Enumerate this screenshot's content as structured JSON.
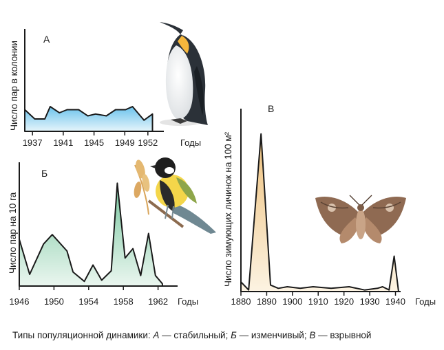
{
  "chart_data": [
    {
      "type": "area",
      "letter": "А",
      "ylabel": "Число пар в колонии",
      "xlabel": "Годы",
      "x_ticks": [
        "1937",
        "1941",
        "1945",
        "1949",
        "1952"
      ],
      "xlim": [
        1936,
        1953
      ],
      "ylim": [
        0,
        10
      ],
      "x": [
        1936,
        1937.3,
        1938.6,
        1939.3,
        1940.5,
        1941.5,
        1943,
        1944.2,
        1945.2,
        1946.6,
        1947.8,
        1949.1,
        1950,
        1951.5,
        1952.6
      ],
      "y": [
        3.5,
        2,
        2,
        4,
        3,
        3.5,
        3.5,
        2.5,
        2.8,
        2.5,
        3.5,
        3.5,
        4,
        1.8,
        2.8
      ],
      "fill": "#b7e0f2",
      "image": "emperor-penguin"
    },
    {
      "type": "area",
      "letter": "Б",
      "ylabel": "Число пар на 10 га",
      "xlabel": "Годы",
      "x_ticks": [
        "1946",
        "1950",
        "1954",
        "1958",
        "1962"
      ],
      "xlim": [
        1946,
        1963.3
      ],
      "ylim": [
        0,
        10
      ],
      "x": [
        1946,
        1947.2,
        1948.8,
        1949.8,
        1951.5,
        1952.2,
        1953.5,
        1954.5,
        1955.5,
        1956.6,
        1957.3,
        1958.2,
        1959.1,
        1960,
        1960.9,
        1961.7,
        1962.5
      ],
      "y": [
        4,
        1,
        3.6,
        4.4,
        3,
        1.2,
        0.4,
        1.8,
        0.5,
        1.3,
        8.8,
        2.4,
        3.2,
        0.9,
        4.5,
        0.9,
        0.2
      ],
      "fill": "#cfe9dc",
      "image": "great-tit"
    },
    {
      "type": "area",
      "letter": "В",
      "ylabel": "Число зимующих личинок на 100 м²",
      "xlabel": "Годы",
      "x_ticks": [
        "1880",
        "1890",
        "1900",
        "1910",
        "1920",
        "1930",
        "1940"
      ],
      "xlim": [
        1880,
        1942
      ],
      "ylim": [
        0,
        10
      ],
      "x": [
        1880,
        1883,
        1887.8,
        1891.5,
        1894.5,
        1898,
        1903,
        1908,
        1915,
        1922,
        1928,
        1933,
        1935,
        1937.5,
        1939.5,
        1941.2
      ],
      "y": [
        0.6,
        0.1,
        9.8,
        0.4,
        0.2,
        0.3,
        0.2,
        0.3,
        0.2,
        0.3,
        0.1,
        0.2,
        0.3,
        0.1,
        2.2,
        0
      ],
      "fill": "#f7e3c0",
      "image": "pine-moth"
    }
  ],
  "caption": {
    "prefix": "Типы популяционной динамики: ",
    "a_letter": "А",
    "a_text": " — стабильный; ",
    "b_letter": "Б",
    "b_text": " — изменчивый; ",
    "c_letter": "В",
    "c_text": " — взрывной"
  }
}
